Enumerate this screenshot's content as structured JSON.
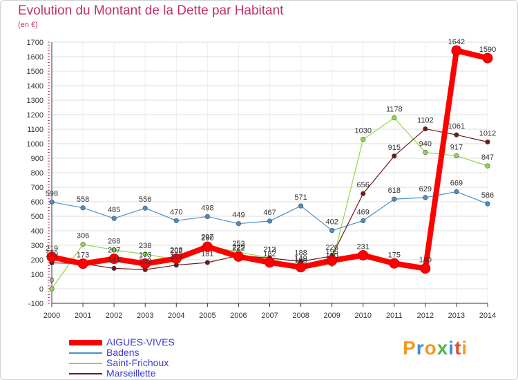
{
  "header": {
    "title": "Evolution du Montant de la Dette par Habitant",
    "unit": "(en €)"
  },
  "brand": {
    "letters": [
      "P",
      "r",
      "o",
      "x",
      "i",
      "t",
      "i"
    ],
    "colors": [
      "#f29a1d",
      "#3a8fd6",
      "#f29a1d",
      "#4fb848",
      "#3a8fd6",
      "#e04a2a",
      "#f29a1d"
    ]
  },
  "chart_data": {
    "type": "line",
    "title": "Evolution du Montant de la Dette par Habitant",
    "ylabel": "(en €)",
    "xlabel": "",
    "x": [
      "2000",
      "2001",
      "2002",
      "2003",
      "2004",
      "2005",
      "2006",
      "2007",
      "2008",
      "2009",
      "2010",
      "2011",
      "2012",
      "2013",
      "2014"
    ],
    "yticks": [
      "-100",
      "0",
      "100",
      "200",
      "300",
      "400",
      "500",
      "600",
      "700",
      "800",
      "900",
      "1000",
      "1100",
      "1200",
      "1300",
      "1400",
      "1500",
      "1600",
      "1700"
    ],
    "ylim": [
      -100,
      1700
    ],
    "grid": true,
    "legend_position": "bottom-left",
    "series": [
      {
        "name": "AIGUES-VIVES",
        "color": "#ff0000",
        "values": [
          219,
          173,
          207,
          173,
          208,
          290,
          222,
          182,
          149,
          195,
          231,
          175,
          140,
          1642,
          1590
        ]
      },
      {
        "name": "Badens",
        "color": "#4a8fc9",
        "values": [
          598,
          558,
          485,
          556,
          470,
          498,
          449,
          467,
          571,
          402,
          469,
          618,
          629,
          669,
          586
        ]
      },
      {
        "name": "Saint-Frichoux",
        "color": "#8ed84a",
        "values": [
          0,
          306,
          268,
          238,
          202,
          297,
          253,
          213,
          136,
          170,
          1030,
          1178,
          940,
          917,
          847
        ]
      },
      {
        "name": "Marseillette",
        "color": "#6e1a1a",
        "values": [
          179,
          173,
          141,
          132,
          163,
          181,
          229,
          212,
          188,
          226,
          656,
          915,
          1102,
          1061,
          1012
        ]
      }
    ],
    "data_labels": [
      [
        "219",
        null,
        "207",
        "173",
        "208",
        "290",
        "222",
        "182",
        "149",
        "195",
        "231",
        "175",
        "140",
        "1642",
        "1590"
      ],
      [
        "598",
        "558",
        "485",
        "556",
        "470",
        "498",
        "449",
        "467",
        "571",
        "402",
        "469",
        "618",
        "629",
        "669",
        "586"
      ],
      [
        "0",
        "306",
        "268",
        "238",
        "202",
        "297",
        "253",
        "213",
        "136",
        "170",
        "1030",
        "1178",
        "940",
        "917",
        "847"
      ],
      [
        "179",
        "173",
        "141",
        "132",
        "163",
        "181",
        "229",
        "212",
        "188",
        "226",
        "656",
        "915",
        "1102",
        "1061",
        "1012"
      ]
    ]
  }
}
